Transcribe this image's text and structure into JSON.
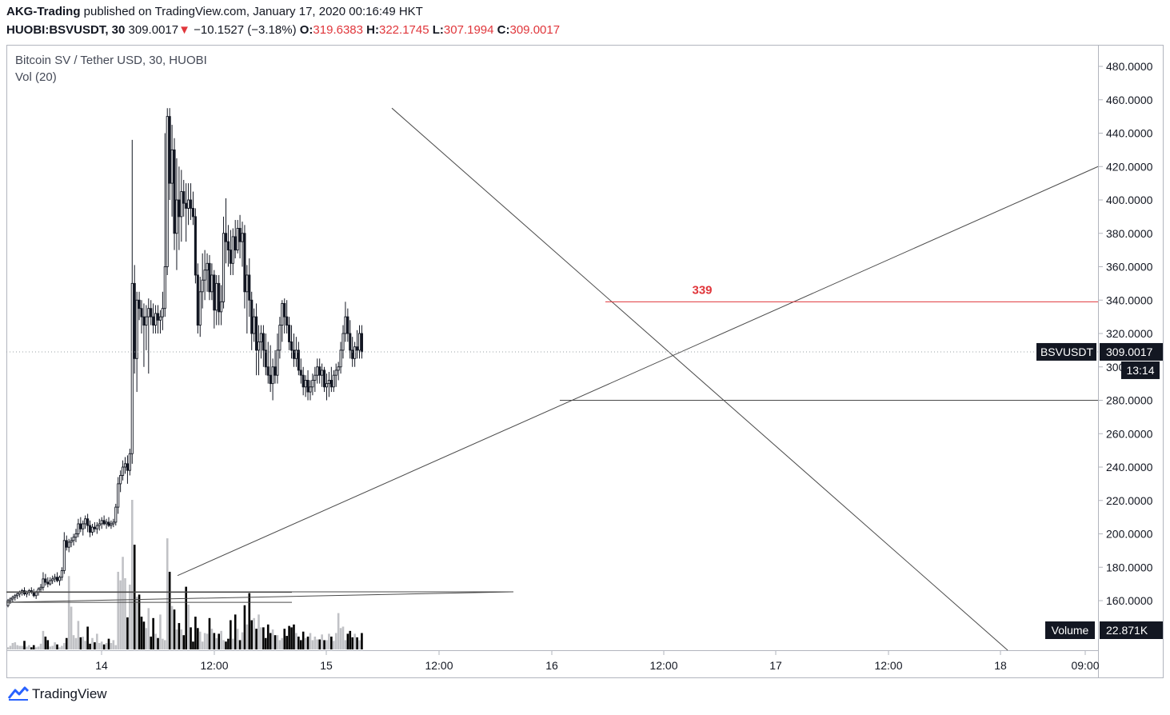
{
  "header": {
    "author": "AKG-Trading",
    "published_text": "published on TradingView.com, January 17, 2020 00:16:49 HKT",
    "symbol_tf": "HUOBI:BSVUSDT, 30",
    "last": "309.0017",
    "change": "−10.1527 (−3.18%)",
    "o_label": "O:",
    "o_value": "319.6383",
    "h_label": "H:",
    "h_value": "322.1745",
    "l_label": "L:",
    "l_value": "307.1994",
    "c_label": "C:",
    "c_value": "309.0017"
  },
  "legend": {
    "title": "Bitcoin SV / Tether USD, 30, HUOBI",
    "volume_indicator": "Vol (20)"
  },
  "footer": {
    "brand": "TradingView"
  },
  "colors": {
    "candle": "#131722",
    "volume_up": "#c1c2c6",
    "volume_down": "#000000",
    "resistance": "#e0363b",
    "trendline": "#4a4a4a",
    "text_red": "#e0363b"
  },
  "chart_data": {
    "type": "candlestick",
    "symbol": "BSVUSDT",
    "yaxis_ticks": [
      160,
      180,
      200,
      220,
      240,
      260,
      280,
      300,
      320,
      340,
      360,
      380,
      400,
      420,
      440,
      460,
      480
    ],
    "ylim": [
      140,
      490
    ],
    "xaxis_ticks": [
      "14",
      "12:00",
      "15",
      "12:00",
      "16",
      "12:00",
      "17",
      "12:00",
      "18",
      "09:00"
    ],
    "last_price_label": "BSVUSDT",
    "last_price": "309.0017",
    "countdown": "13:14",
    "volume_label": "Volume",
    "volume_value": "22.871K",
    "resistance": {
      "label": "339",
      "price": 339
    },
    "support_price": 280,
    "candles": [
      [
        157,
        161,
        156,
        160
      ],
      [
        160,
        162,
        158,
        161
      ],
      [
        161,
        163,
        159,
        162
      ],
      [
        162,
        164,
        160,
        163
      ],
      [
        163,
        165,
        161,
        164
      ],
      [
        164,
        166,
        162,
        165
      ],
      [
        165,
        167,
        163,
        166
      ],
      [
        166,
        168,
        163,
        164
      ],
      [
        164,
        166,
        162,
        165
      ],
      [
        165,
        167,
        163,
        166
      ],
      [
        166,
        168,
        164,
        165
      ],
      [
        165,
        167,
        162,
        163
      ],
      [
        163,
        166,
        161,
        165
      ],
      [
        165,
        168,
        163,
        167
      ],
      [
        167,
        170,
        165,
        168
      ],
      [
        168,
        177,
        166,
        173
      ],
      [
        173,
        176,
        169,
        171
      ],
      [
        171,
        174,
        168,
        170
      ],
      [
        170,
        174,
        169,
        172
      ],
      [
        172,
        175,
        170,
        173
      ],
      [
        173,
        176,
        171,
        174
      ],
      [
        174,
        177,
        171,
        172
      ],
      [
        172,
        175,
        169,
        174
      ],
      [
        174,
        180,
        172,
        178
      ],
      [
        178,
        201,
        176,
        196
      ],
      [
        196,
        199,
        190,
        192
      ],
      [
        192,
        197,
        189,
        195
      ],
      [
        195,
        198,
        192,
        196
      ],
      [
        196,
        200,
        193,
        198
      ],
      [
        198,
        203,
        195,
        200
      ],
      [
        200,
        209,
        198,
        206
      ],
      [
        206,
        210,
        201,
        203
      ],
      [
        203,
        208,
        199,
        206
      ],
      [
        206,
        211,
        203,
        209
      ],
      [
        209,
        212,
        201,
        205
      ],
      [
        205,
        208,
        198,
        201
      ],
      [
        201,
        206,
        199,
        204
      ],
      [
        204,
        207,
        201,
        203
      ],
      [
        203,
        207,
        200,
        205
      ],
      [
        205,
        209,
        202,
        206
      ],
      [
        206,
        210,
        203,
        208
      ],
      [
        208,
        211,
        205,
        206
      ],
      [
        206,
        209,
        203,
        207
      ],
      [
        207,
        210,
        204,
        205
      ],
      [
        205,
        208,
        203,
        206
      ],
      [
        206,
        209,
        204,
        207
      ],
      [
        207,
        218,
        205,
        216
      ],
      [
        216,
        234,
        212,
        230
      ],
      [
        230,
        238,
        225,
        235
      ],
      [
        235,
        244,
        232,
        240
      ],
      [
        240,
        246,
        236,
        242
      ],
      [
        242,
        247,
        230,
        238
      ],
      [
        238,
        251,
        235,
        248
      ],
      [
        248,
        436,
        242,
        350
      ],
      [
        350,
        361,
        296,
        305
      ],
      [
        305,
        345,
        285,
        340
      ],
      [
        340,
        345,
        328,
        335
      ],
      [
        335,
        340,
        320,
        330
      ],
      [
        330,
        338,
        300,
        325
      ],
      [
        325,
        337,
        310,
        330
      ],
      [
        330,
        341,
        296,
        335
      ],
      [
        335,
        340,
        325,
        330
      ],
      [
        330,
        338,
        320,
        325
      ],
      [
        325,
        337,
        320,
        332
      ],
      [
        332,
        337,
        320,
        328
      ],
      [
        328,
        334,
        320,
        330
      ],
      [
        330,
        345,
        322,
        335
      ],
      [
        335,
        440,
        330,
        360
      ],
      [
        360,
        455,
        355,
        450
      ],
      [
        450,
        455,
        400,
        410
      ],
      [
        410,
        445,
        390,
        430
      ],
      [
        430,
        437,
        370,
        380
      ],
      [
        380,
        425,
        358,
        400
      ],
      [
        400,
        420,
        370,
        390
      ],
      [
        390,
        418,
        375,
        405
      ],
      [
        405,
        412,
        390,
        398
      ],
      [
        398,
        410,
        375,
        395
      ],
      [
        395,
        410,
        385,
        400
      ],
      [
        400,
        410,
        388,
        395
      ],
      [
        395,
        405,
        385,
        390
      ],
      [
        390,
        395,
        350,
        355
      ],
      [
        355,
        362,
        320,
        325
      ],
      [
        325,
        354,
        318,
        345
      ],
      [
        345,
        368,
        335,
        352
      ],
      [
        352,
        370,
        340,
        358
      ],
      [
        358,
        368,
        345,
        362
      ],
      [
        362,
        367,
        340,
        345
      ],
      [
        345,
        362,
        340,
        355
      ],
      [
        355,
        358,
        323,
        334
      ],
      [
        334,
        355,
        325,
        350
      ],
      [
        350,
        355,
        325,
        333
      ],
      [
        333,
        349,
        325,
        339
      ],
      [
        339,
        390,
        335,
        380
      ],
      [
        380,
        401,
        362,
        375
      ],
      [
        375,
        385,
        360,
        370
      ],
      [
        370,
        382,
        355,
        362
      ],
      [
        362,
        383,
        355,
        378
      ],
      [
        378,
        388,
        365,
        370
      ],
      [
        370,
        388,
        368,
        383
      ],
      [
        383,
        391,
        365,
        375
      ],
      [
        375,
        387,
        360,
        380
      ],
      [
        380,
        385,
        335,
        345
      ],
      [
        345,
        361,
        320,
        355
      ],
      [
        355,
        365,
        330,
        340
      ],
      [
        340,
        345,
        310,
        320
      ],
      [
        320,
        335,
        315,
        330
      ],
      [
        330,
        338,
        295,
        310
      ],
      [
        310,
        325,
        295,
        315
      ],
      [
        315,
        325,
        305,
        320
      ],
      [
        320,
        325,
        300,
        310
      ],
      [
        310,
        320,
        295,
        300
      ],
      [
        300,
        315,
        290,
        295
      ],
      [
        295,
        313,
        285,
        290
      ],
      [
        290,
        305,
        280,
        300
      ],
      [
        300,
        310,
        290,
        295
      ],
      [
        295,
        320,
        290,
        310
      ],
      [
        310,
        330,
        305,
        325
      ],
      [
        325,
        340,
        315,
        338
      ],
      [
        338,
        341,
        320,
        330
      ],
      [
        330,
        340,
        320,
        325
      ],
      [
        325,
        330,
        310,
        315
      ],
      [
        315,
        325,
        305,
        310
      ],
      [
        310,
        320,
        300,
        305
      ],
      [
        305,
        318,
        300,
        310
      ],
      [
        310,
        315,
        295,
        298
      ],
      [
        298,
        305,
        290,
        295
      ],
      [
        295,
        300,
        283,
        288
      ],
      [
        288,
        295,
        282,
        292
      ],
      [
        292,
        298,
        280,
        285
      ],
      [
        285,
        292,
        280,
        288
      ],
      [
        288,
        296,
        283,
        292
      ],
      [
        292,
        300,
        285,
        295
      ],
      [
        295,
        305,
        290,
        300
      ],
      [
        300,
        305,
        290,
        295
      ],
      [
        295,
        302,
        288,
        298
      ],
      [
        298,
        300,
        285,
        288
      ],
      [
        288,
        296,
        280,
        290
      ],
      [
        290,
        297,
        282,
        292
      ],
      [
        292,
        300,
        285,
        288
      ],
      [
        288,
        298,
        285,
        295
      ],
      [
        295,
        302,
        288,
        298
      ],
      [
        298,
        303,
        292,
        300
      ],
      [
        300,
        315,
        296,
        310
      ],
      [
        310,
        325,
        305,
        320
      ],
      [
        320,
        339,
        315,
        330
      ],
      [
        330,
        335,
        315,
        320
      ],
      [
        320,
        328,
        305,
        310
      ],
      [
        310,
        318,
        300,
        305
      ],
      [
        305,
        315,
        300,
        312
      ],
      [
        312,
        322,
        305,
        310
      ],
      [
        310,
        325,
        305,
        320
      ],
      [
        320,
        325,
        305,
        309
      ]
    ],
    "volume_pct": [
      0.3,
      0.5,
      0.9,
      1,
      0.6,
      0.5,
      0.5,
      1.2,
      0.4,
      0.6,
      0.3,
      0.6,
      0.3,
      0.4,
      0.8,
      2.6,
      1.8,
      1.3,
      0.4,
      0.5,
      1,
      0.7,
      0.3,
      0.5,
      0.9,
      1.6,
      10.3,
      6,
      2,
      1.6,
      4,
      1.7,
      1.8,
      1.2,
      3.2,
      0.8,
      1.6,
      1,
      2.2,
      0.9,
      1.1,
      0.7,
      0.9,
      1.5,
      0.9,
      1.3,
      0.6,
      10.9,
      9.7,
      13,
      10,
      4.5,
      9.1,
      21,
      14.7,
      7.4,
      7.7,
      4.6,
      3.9,
      3,
      5.8,
      1.8,
      4.4,
      2.2,
      1.6,
      4.9,
      1.5,
      1.3,
      15.6,
      10.9,
      6.1,
      5.6,
      2.8,
      3.7,
      2.8,
      2,
      8.8,
      6.3,
      3.1,
      1.1,
      4.6,
      3,
      2.5,
      1.1,
      2.3,
      2.2,
      4.4,
      2.9,
      2.3,
      1.6,
      2.2,
      2.6,
      1.3,
      1.1,
      1.5,
      4.1,
      1.5,
      4.9,
      2.9,
      1.3,
      2.4,
      6.2,
      3.5,
      7.9,
      4.1,
      4.4,
      2.9,
      4.9,
      3.1,
      3.1,
      1.6,
      3.5,
      2.3,
      2.8,
      2,
      2,
      1.3,
      1.6,
      2.9,
      1.9,
      3.3,
      3.1,
      3.5,
      2.3,
      1.8,
      1.3,
      2.5,
      1.6,
      1.8,
      2.3,
      1.3,
      1.8,
      1.4,
      1.4,
      2.1,
      1.3,
      1.3,
      2.2,
      1.8,
      1.2,
      2.3,
      5.1,
      3,
      3.2,
      1.3,
      2.2,
      2.6,
      1.7,
      2.2,
      1.7,
      1.3,
      2.3,
      2.4
    ]
  }
}
